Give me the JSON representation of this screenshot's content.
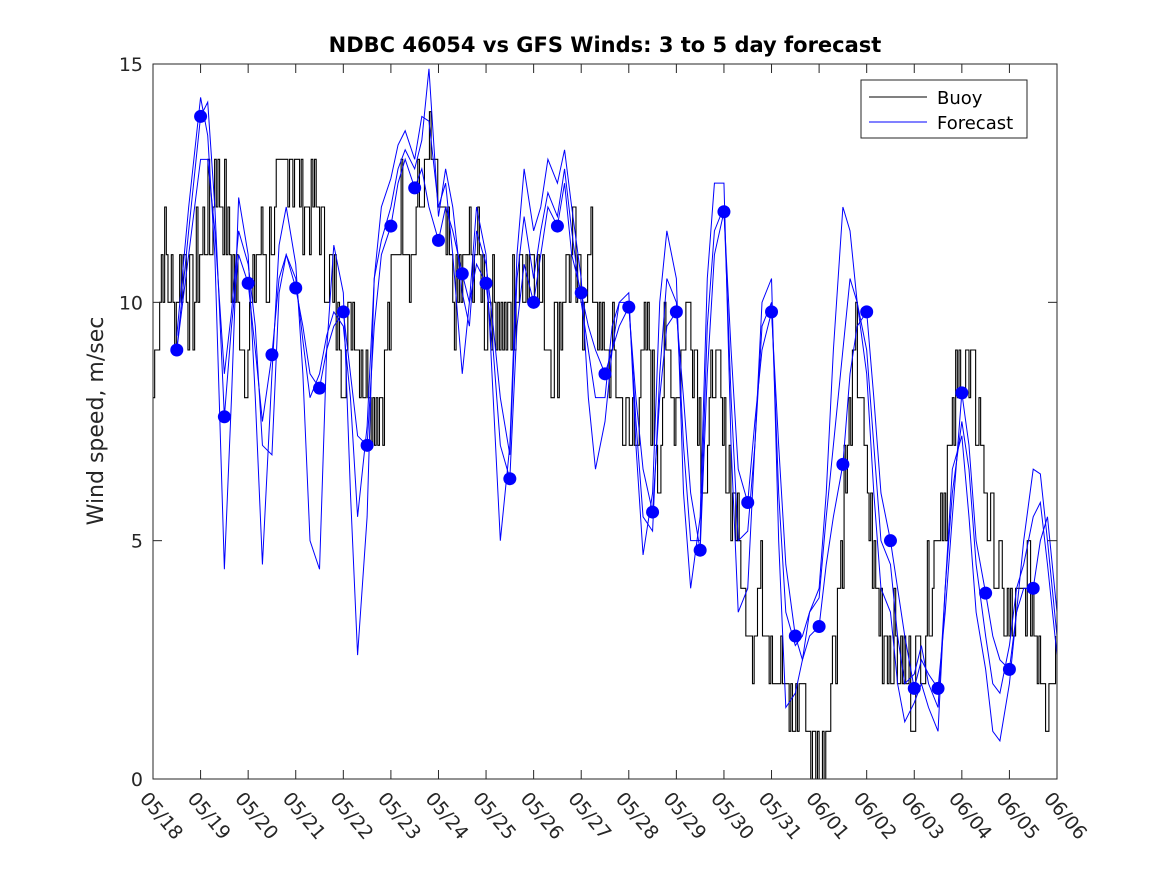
{
  "chart_data": {
    "type": "line",
    "title": "NDBC 46054 vs GFS Winds: 3 to 5 day forecast",
    "xlabel": "",
    "ylabel": "Wind speed, m/sec",
    "x_ticks": [
      "05/18",
      "05/19",
      "05/20",
      "05/21",
      "05/22",
      "05/23",
      "05/24",
      "05/25",
      "05/26",
      "05/27",
      "05/28",
      "05/29",
      "05/30",
      "05/31",
      "06/01",
      "06/02",
      "06/03",
      "06/04",
      "06/05",
      "06/06"
    ],
    "xlim_days": [
      0,
      19
    ],
    "ylim": [
      0,
      15
    ],
    "y_ticks": [
      "0",
      "5",
      "10",
      "15"
    ],
    "grid": false,
    "legend": {
      "placement": "top-right",
      "entries": [
        "Buoy",
        "Forecast"
      ]
    },
    "colors": {
      "buoy": "#000000",
      "forecast": "#0000ff",
      "axes": "#262626"
    },
    "buoy_anchor": {
      "name": "Buoy",
      "x_days": [
        0.0,
        0.1,
        0.2,
        0.4,
        0.6,
        0.8,
        1.0,
        1.1,
        1.2,
        1.3,
        1.5,
        1.6,
        1.8,
        2.0,
        2.2,
        2.4,
        2.6,
        2.8,
        3.0,
        3.2,
        3.4,
        3.6,
        3.8,
        4.0,
        4.2,
        4.4,
        4.6,
        4.8,
        5.0,
        5.2,
        5.4,
        5.6,
        5.8,
        6.0,
        6.2,
        6.4,
        6.6,
        6.8,
        7.0,
        7.2,
        7.4,
        7.6,
        7.8,
        8.0,
        8.2,
        8.4,
        8.6,
        8.8,
        9.0,
        9.2,
        9.4,
        9.6,
        9.8,
        10.0,
        10.2,
        10.4,
        10.6,
        10.8,
        11.0,
        11.2,
        11.4,
        11.6,
        11.8,
        12.0,
        12.2,
        12.4,
        12.6,
        12.8,
        13.0,
        13.2,
        13.4,
        13.6,
        13.8,
        14.0,
        14.2,
        14.4,
        14.6,
        14.8,
        15.0,
        15.2,
        15.4,
        15.6,
        15.8,
        16.0,
        16.2,
        16.4,
        16.6,
        16.8,
        17.0,
        17.2,
        17.4,
        17.6,
        17.8,
        18.0,
        18.2,
        18.4,
        18.6,
        18.8,
        19.0
      ],
      "values": [
        8,
        10,
        11,
        10,
        11,
        10,
        11,
        12,
        11,
        13,
        12,
        11,
        10,
        9,
        11,
        11,
        12,
        13,
        13,
        12,
        12,
        11,
        10,
        9,
        10,
        9,
        8,
        8,
        10,
        12,
        11,
        12,
        13,
        12,
        11,
        10,
        11,
        11,
        10,
        10,
        9,
        10,
        11,
        11,
        10,
        9,
        10,
        11,
        10,
        11,
        9,
        9,
        8,
        7,
        8,
        9,
        7,
        9,
        8,
        10,
        9,
        6,
        9,
        7,
        6,
        4,
        3,
        4,
        3,
        2,
        1,
        2,
        1,
        0,
        2,
        4,
        7,
        9,
        6,
        4,
        3,
        3,
        2,
        2,
        3,
        5,
        6,
        7,
        9,
        8,
        7,
        5,
        4,
        3,
        3,
        4,
        3,
        2,
        3
      ]
    },
    "forecast_points": {
      "name": "Forecast",
      "x_days": [
        0.5,
        1.0,
        1.5,
        2.0,
        2.5,
        3.0,
        3.5,
        4.0,
        4.5,
        5.0,
        5.5,
        6.0,
        6.5,
        7.0,
        7.5,
        8.0,
        8.5,
        9.0,
        9.5,
        10.0,
        10.5,
        11.0,
        11.5,
        12.0,
        12.5,
        13.0,
        13.5,
        14.0,
        14.5,
        15.0,
        15.5,
        16.0,
        16.5,
        17.0,
        17.5,
        18.0,
        18.5
      ],
      "values": [
        9.0,
        13.9,
        7.6,
        10.4,
        8.9,
        10.3,
        8.2,
        9.8,
        7.0,
        11.6,
        12.4,
        11.3,
        10.6,
        10.4,
        6.3,
        10.0,
        11.6,
        10.2,
        8.5,
        9.9,
        5.6,
        9.8,
        4.8,
        11.9,
        5.8,
        9.8,
        3.0,
        3.2,
        6.6,
        9.8,
        5.0,
        1.9,
        1.9,
        8.1,
        3.9,
        2.3,
        4.0
      ]
    },
    "forecast_series": [
      {
        "name": "Forecast",
        "x_days": [
          0.5,
          0.75,
          1.0,
          1.15,
          1.3,
          1.5,
          1.65,
          1.8,
          2.0,
          2.15,
          2.3,
          2.5,
          2.65,
          2.8,
          3.0,
          3.15,
          3.3,
          3.5,
          3.65,
          3.8,
          4.0,
          4.15,
          4.3,
          4.5,
          4.65,
          4.8,
          5.0,
          5.15,
          5.3,
          5.5,
          5.65,
          5.8,
          6.0,
          6.15,
          6.3,
          6.5,
          6.65,
          6.8,
          7.0,
          7.15,
          7.3,
          7.5,
          7.65,
          7.8,
          8.0,
          8.15,
          8.3,
          8.5,
          8.65,
          8.8,
          9.0,
          9.15,
          9.3,
          9.5,
          9.65,
          9.8,
          10.0,
          10.15,
          10.3,
          10.5,
          10.65,
          10.8,
          11.0,
          11.15,
          11.3,
          11.5,
          11.65,
          11.8,
          12.0,
          12.15,
          12.3,
          12.5,
          12.65,
          12.8,
          13.0,
          13.15,
          13.3,
          13.5,
          13.65,
          13.8,
          14.0,
          14.15,
          14.3,
          14.5,
          14.65,
          14.8,
          15.0,
          15.15,
          15.3,
          15.5,
          15.65,
          15.8,
          16.0,
          16.15,
          16.3,
          16.5,
          16.65,
          16.8,
          17.0,
          17.15,
          17.3,
          17.5,
          17.65,
          17.8,
          18.0,
          18.15,
          18.3,
          18.5,
          18.65,
          18.8,
          19.0
        ],
        "values": [
          9.0,
          11.5,
          13.9,
          14.2,
          12.0,
          7.6,
          9.5,
          11.0,
          10.4,
          9.0,
          7.5,
          8.9,
          10.5,
          11.0,
          10.3,
          9.5,
          8.5,
          8.2,
          9.0,
          9.5,
          9.8,
          8.5,
          7.2,
          7.0,
          9.5,
          11.0,
          11.6,
          12.5,
          13.0,
          12.4,
          12.8,
          12.0,
          11.3,
          12.0,
          11.5,
          10.6,
          10.0,
          10.8,
          10.4,
          9.0,
          7.0,
          6.3,
          9.5,
          10.8,
          10.0,
          11.0,
          12.0,
          11.6,
          12.5,
          11.0,
          10.2,
          9.5,
          9.0,
          8.5,
          9.0,
          9.5,
          9.9,
          8.0,
          6.5,
          5.6,
          8.0,
          9.5,
          9.8,
          8.0,
          6.0,
          4.8,
          8.5,
          11.0,
          11.9,
          9.0,
          6.5,
          5.8,
          7.5,
          9.0,
          9.8,
          7.0,
          4.5,
          3.0,
          2.5,
          3.0,
          3.2,
          4.5,
          5.5,
          6.6,
          8.5,
          9.5,
          9.8,
          8.0,
          6.0,
          5.0,
          4.0,
          3.0,
          1.9,
          2.5,
          2.2,
          1.9,
          3.5,
          5.5,
          8.1,
          7.0,
          5.0,
          3.9,
          3.0,
          2.5,
          2.3,
          3.5,
          4.0,
          4.0,
          5.0,
          5.5,
          3.5
        ]
      },
      {
        "name": "Forecast",
        "x_days": [
          0.5,
          0.75,
          1.0,
          1.15,
          1.3,
          1.5,
          1.65,
          1.8,
          2.0,
          2.15,
          2.3,
          2.5,
          2.65,
          2.8,
          3.0,
          3.15,
          3.3,
          3.5,
          3.65,
          3.8,
          4.0,
          4.15,
          4.3,
          4.5,
          4.65,
          4.8,
          5.0,
          5.15,
          5.3,
          5.5,
          5.65,
          5.8,
          6.0,
          6.15,
          6.3,
          6.5,
          6.65,
          6.8,
          7.0,
          7.15,
          7.3,
          7.5,
          7.65,
          7.8,
          8.0,
          8.15,
          8.3,
          8.5,
          8.65,
          8.8,
          9.0,
          9.15,
          9.3,
          9.5,
          9.65,
          9.8,
          10.0,
          10.15,
          10.3,
          10.5,
          10.65,
          10.8,
          11.0,
          11.15,
          11.3,
          11.5,
          11.65,
          11.8,
          12.0,
          12.15,
          12.3,
          12.5,
          12.65,
          12.8,
          13.0,
          13.15,
          13.3,
          13.5,
          13.65,
          13.8,
          14.0,
          14.15,
          14.3,
          14.5,
          14.65,
          14.8,
          15.0,
          15.15,
          15.3,
          15.5,
          15.65,
          15.8,
          16.0,
          16.15,
          16.3,
          16.5,
          16.65,
          16.8,
          17.0,
          17.15,
          17.3,
          17.5,
          17.65,
          17.8,
          18.0,
          18.15,
          18.3,
          18.5,
          18.65,
          18.8,
          19.0
        ],
        "values": [
          9.3,
          12.0,
          14.3,
          13.5,
          11.0,
          4.4,
          8.0,
          12.2,
          11.0,
          8.0,
          4.5,
          8.5,
          11.2,
          12.0,
          10.8,
          8.5,
          5.0,
          4.4,
          9.0,
          11.2,
          10.2,
          6.0,
          2.6,
          5.5,
          10.5,
          12.0,
          12.6,
          13.3,
          13.6,
          13.0,
          13.9,
          13.8,
          12.0,
          12.5,
          11.0,
          8.5,
          10.0,
          12.0,
          11.0,
          8.0,
          5.0,
          7.0,
          11.0,
          12.8,
          11.5,
          12.0,
          13.0,
          12.5,
          13.2,
          12.0,
          10.5,
          8.0,
          6.5,
          7.5,
          9.0,
          10.0,
          10.2,
          7.0,
          4.7,
          6.0,
          10.0,
          11.5,
          10.5,
          6.0,
          4.0,
          5.5,
          10.5,
          12.5,
          12.5,
          7.0,
          3.5,
          4.0,
          7.0,
          10.0,
          10.5,
          5.0,
          1.5,
          1.8,
          2.5,
          3.5,
          4.0,
          6.0,
          9.0,
          12.0,
          11.5,
          10.0,
          8.5,
          6.0,
          4.0,
          3.5,
          2.0,
          1.2,
          1.6,
          2.0,
          1.5,
          1.0,
          4.0,
          6.5,
          7.2,
          5.5,
          3.5,
          2.3,
          1.0,
          0.8,
          2.0,
          3.5,
          5.0,
          6.5,
          6.4,
          5.0,
          3.0
        ]
      },
      {
        "name": "Forecast",
        "x_days": [
          0.5,
          0.75,
          1.0,
          1.15,
          1.3,
          1.5,
          1.65,
          1.8,
          2.0,
          2.15,
          2.3,
          2.5,
          2.65,
          2.8,
          3.0,
          3.15,
          3.3,
          3.5,
          3.65,
          3.8,
          4.0,
          4.15,
          4.3,
          4.5,
          4.65,
          4.8,
          5.0,
          5.15,
          5.3,
          5.5,
          5.65,
          5.8,
          6.0,
          6.15,
          6.3,
          6.5,
          6.65,
          6.8,
          7.0,
          7.15,
          7.3,
          7.5,
          7.65,
          7.8,
          8.0,
          8.15,
          8.3,
          8.5,
          8.65,
          8.8,
          9.0,
          9.15,
          9.3,
          9.5,
          9.65,
          9.8,
          10.0,
          10.15,
          10.3,
          10.5,
          10.65,
          10.8,
          11.0,
          11.15,
          11.3,
          11.5,
          11.65,
          11.8,
          12.0,
          12.15,
          12.3,
          12.5,
          12.65,
          12.8,
          13.0,
          13.15,
          13.3,
          13.5,
          13.65,
          13.8,
          14.0,
          14.15,
          14.3,
          14.5,
          14.65,
          14.8,
          15.0,
          15.15,
          15.3,
          15.5,
          15.65,
          15.8,
          16.0,
          16.15,
          16.3,
          16.5,
          16.65,
          16.8,
          17.0,
          17.15,
          17.3,
          17.5,
          17.65,
          17.8,
          18.0,
          18.15,
          18.3,
          18.5,
          18.65,
          18.8,
          19.0
        ],
        "values": [
          9.0,
          11.0,
          13.0,
          13.0,
          11.5,
          8.5,
          9.8,
          11.5,
          10.8,
          9.5,
          7.0,
          6.8,
          10.2,
          11.0,
          10.5,
          9.2,
          8.0,
          8.5,
          9.3,
          9.8,
          9.5,
          8.0,
          5.5,
          7.4,
          10.5,
          11.3,
          12.0,
          12.8,
          13.2,
          12.8,
          13.4,
          14.9,
          11.8,
          12.8,
          12.0,
          10.2,
          9.5,
          11.5,
          10.8,
          9.5,
          8.0,
          6.8,
          10.5,
          11.8,
          10.5,
          11.5,
          12.3,
          11.8,
          12.8,
          11.5,
          10.0,
          9.0,
          8.0,
          8.0,
          9.5,
          10.0,
          10.0,
          7.5,
          5.5,
          5.2,
          8.5,
          10.5,
          10.0,
          7.0,
          5.0,
          5.0,
          9.5,
          11.5,
          12.0,
          8.0,
          5.0,
          5.2,
          7.0,
          9.5,
          10.0,
          6.0,
          3.5,
          2.8,
          3.0,
          3.5,
          3.8,
          5.5,
          7.0,
          9.0,
          10.5,
          10.0,
          9.0,
          7.0,
          5.0,
          4.5,
          3.0,
          2.0,
          2.2,
          2.8,
          2.0,
          1.5,
          4.0,
          6.0,
          7.5,
          6.5,
          4.5,
          3.0,
          2.0,
          1.8,
          2.8,
          4.0,
          4.5,
          5.5,
          5.8,
          4.5,
          2.6
        ]
      }
    ]
  }
}
